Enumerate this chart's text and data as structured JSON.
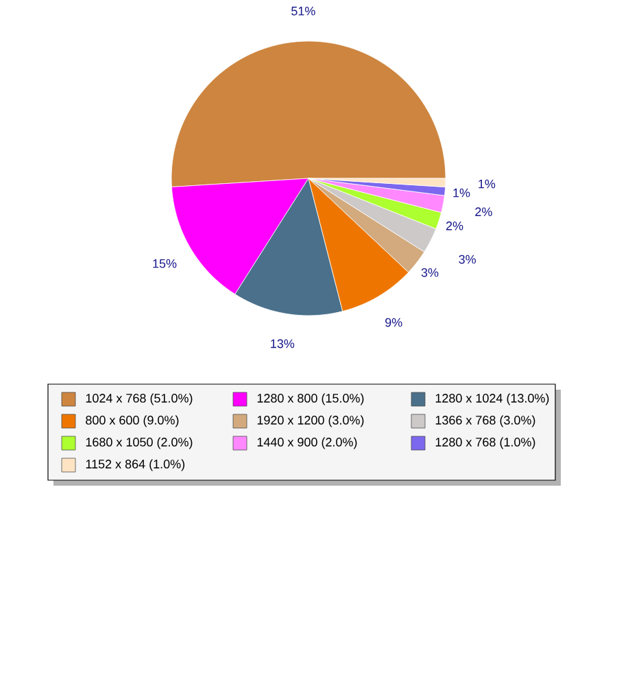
{
  "chart_data": {
    "type": "pie",
    "categories": [
      "1024 x 768 (51.0%)",
      "1280 x 800 (15.0%)",
      "1280 x 1024 (13.0%)",
      "800 x 600 (9.0%)",
      "1920 x 1200 (3.0%)",
      "1366 x 768 (3.0%)",
      "1680 x 1050 (2.0%)",
      "1440 x 900 (2.0%)",
      "1280 x 768 (1.0%)",
      "1152 x 864 (1.0%)"
    ],
    "values": [
      51,
      15,
      13,
      9,
      3,
      3,
      2,
      2,
      1,
      1
    ],
    "colors": [
      "#cd853f",
      "#ff00ff",
      "#4a708b",
      "#ee7600",
      "#d2aa7d",
      "#cdc9c9",
      "#adff2f",
      "#ff88ff",
      "#7b68ee",
      "#ffe4c4"
    ],
    "value_labels": [
      "51%",
      "15%",
      "13%",
      "9%",
      "3%",
      "3%",
      "2%",
      "2%",
      "1%",
      "1%"
    ],
    "legend": "bottom"
  }
}
